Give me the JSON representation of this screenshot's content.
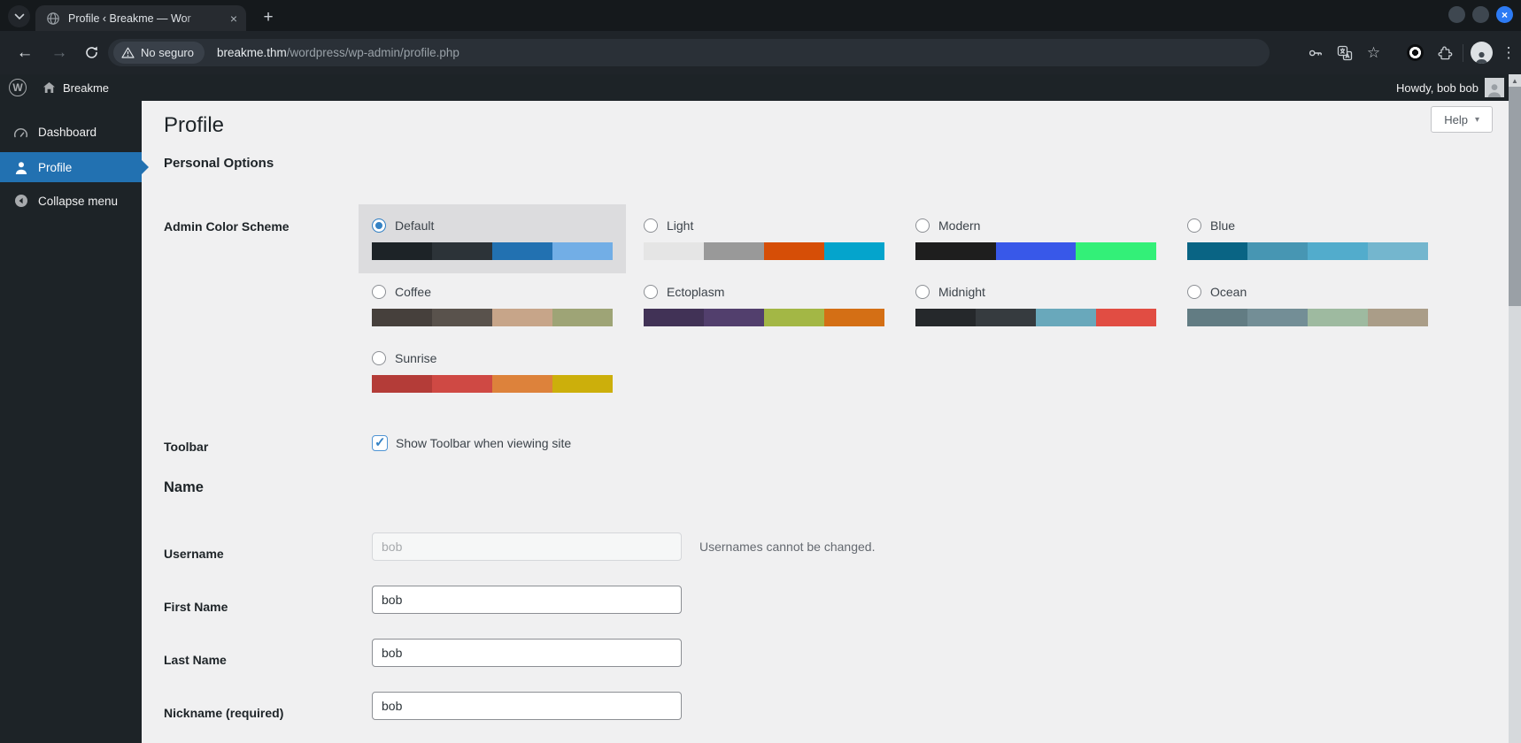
{
  "browser": {
    "tab_title": "Profile ‹ Breakme — Wor",
    "tab_close": "×",
    "new_tab_label": "+",
    "window_close": "×",
    "security_label": "No seguro",
    "url_host": "breakme.thm",
    "url_path": "/wordpress/wp-admin/profile.php",
    "action_icons": [
      "key-icon",
      "translate-icon",
      "bookmark-star-icon",
      "extension-record-icon",
      "extensions-puzzle-icon",
      "profile-avatar-icon",
      "menu-dots-icon"
    ]
  },
  "admin_bar": {
    "site_name": "Breakme",
    "howdy": "Howdy, bob bob"
  },
  "sidebar": {
    "items": [
      {
        "label": "Dashboard",
        "active": false
      },
      {
        "label": "Profile",
        "active": true
      },
      {
        "label": "Collapse menu",
        "active": false
      }
    ]
  },
  "page": {
    "title": "Profile",
    "help_label": "Help",
    "help_caret": "▾",
    "personal_options_heading": "Personal Options",
    "name_heading": "Name",
    "admin_color_scheme_label": "Admin Color Scheme",
    "toolbar_label": "Toolbar",
    "toolbar_option": "Show Toolbar when viewing site",
    "toolbar_checked": "✓",
    "username_label": "Username",
    "username_value": "bob",
    "username_note": "Usernames cannot be changed.",
    "first_name_label": "First Name",
    "first_name_value": "bob",
    "last_name_label": "Last Name",
    "last_name_value": "bob",
    "nickname_label": "Nickname (required)",
    "nickname_value": "bob",
    "color_schemes": [
      {
        "name": "Default",
        "selected": true,
        "colors": [
          "#1d2327",
          "#2c3338",
          "#2271b1",
          "#72aee6"
        ]
      },
      {
        "name": "Light",
        "selected": false,
        "colors": [
          "#e5e5e5",
          "#999999",
          "#d64e07",
          "#04a4cc"
        ]
      },
      {
        "name": "Modern",
        "selected": false,
        "colors": [
          "#1e1e1e",
          "#3858e9",
          "#33f078"
        ]
      },
      {
        "name": "Blue",
        "selected": false,
        "colors": [
          "#096484",
          "#4796b3",
          "#52accc",
          "#74b6ce"
        ]
      },
      {
        "name": "Coffee",
        "selected": false,
        "colors": [
          "#46403c",
          "#59524c",
          "#c7a589",
          "#9ea476"
        ]
      },
      {
        "name": "Ectoplasm",
        "selected": false,
        "colors": [
          "#413256",
          "#523f6d",
          "#a3b745",
          "#d46f15"
        ]
      },
      {
        "name": "Midnight",
        "selected": false,
        "colors": [
          "#25282b",
          "#363b3f",
          "#69a8bb",
          "#e14d43"
        ]
      },
      {
        "name": "Ocean",
        "selected": false,
        "colors": [
          "#627c83",
          "#738e96",
          "#9ebaa0",
          "#aa9d88"
        ]
      },
      {
        "name": "Sunrise",
        "selected": false,
        "colors": [
          "#b43c38",
          "#cf4944",
          "#dd823b",
          "#ccaf0b"
        ]
      }
    ]
  },
  "colors": {
    "accent_blue": "#2271b1",
    "admin_dark": "#1d2327",
    "content_bg": "#f0f0f1",
    "selected_option_bg": "#dcdcde",
    "radio_checked": "#3582c4"
  }
}
